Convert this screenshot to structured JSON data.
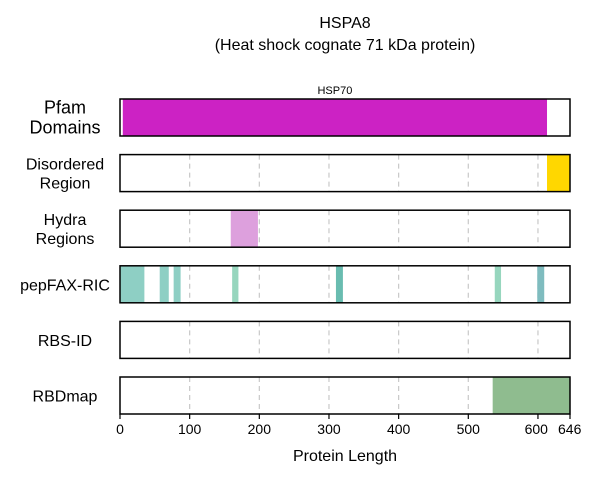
{
  "chart_data": {
    "type": "bar",
    "title": "HSPA8",
    "subtitle": "(Heat shock cognate 71 kDa protein)",
    "xlabel": "Protein Length",
    "xlim": [
      0,
      646
    ],
    "xticks": [
      0,
      100,
      200,
      300,
      400,
      500,
      600,
      646
    ],
    "grid": true,
    "grid_x": [
      100,
      200,
      300,
      400,
      500,
      600
    ],
    "tracks": [
      {
        "name": "Pfam\nDomains",
        "regions": [
          {
            "start": 4,
            "end": 613,
            "color": "#cc22c4",
            "label": "HSP70"
          }
        ]
      },
      {
        "name": "Disordered\nRegion",
        "regions": [
          {
            "start": 613,
            "end": 646,
            "color": "#ffd700"
          }
        ]
      },
      {
        "name": "Hydra\nRegions",
        "regions": [
          {
            "start": 159,
            "end": 198,
            "color": "#dda0dd"
          }
        ]
      },
      {
        "name": "pepFAX-RIC",
        "regions": [
          {
            "start": 0,
            "end": 35,
            "color": "#8ecfc4"
          },
          {
            "start": 57,
            "end": 70,
            "color": "#8ecfc4"
          },
          {
            "start": 77,
            "end": 87,
            "color": "#8ecfc4"
          },
          {
            "start": 161,
            "end": 170,
            "color": "#97d6be"
          },
          {
            "start": 310,
            "end": 320,
            "color": "#69bcb0"
          },
          {
            "start": 538,
            "end": 547,
            "color": "#97d6be"
          },
          {
            "start": 599,
            "end": 609,
            "color": "#7fbcbf"
          }
        ]
      },
      {
        "name": "RBS-ID",
        "regions": []
      },
      {
        "name": "RBDmap",
        "regions": [
          {
            "start": 535,
            "end": 646,
            "color": "#8fbc8f"
          }
        ]
      }
    ]
  }
}
